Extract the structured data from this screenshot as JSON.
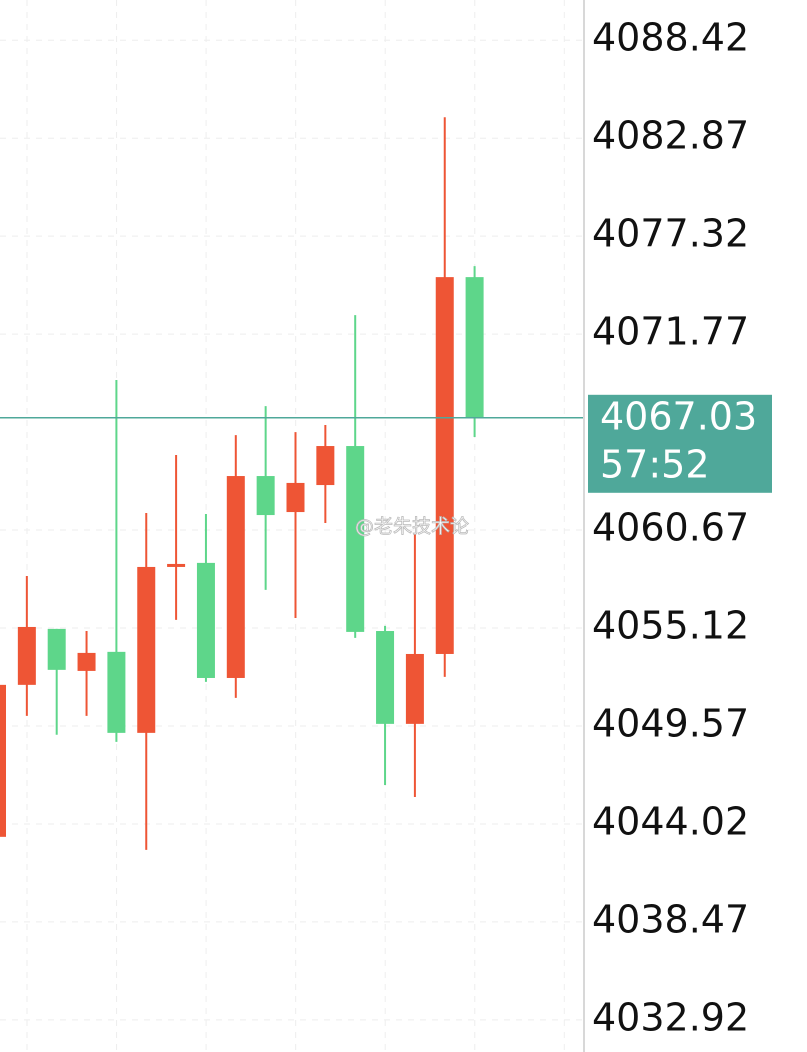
{
  "chart_data": {
    "type": "candlestick",
    "ylim": [
      4031.1,
      4090.7
    ],
    "yticks": [
      4088.42,
      4082.87,
      4077.32,
      4071.77,
      4060.67,
      4055.12,
      4049.57,
      4044.02,
      4038.47,
      4032.92
    ],
    "grid": true,
    "up_color": "#ee5535",
    "down_color": "#5ed68a",
    "candles": [
      {
        "open": 4043.29,
        "high": 4051.9,
        "low": 4043.29,
        "close": 4051.9
      },
      {
        "open": 4051.9,
        "high": 4058.07,
        "low": 4050.14,
        "close": 4055.18
      },
      {
        "open": 4055.07,
        "high": 4055.07,
        "low": 4049.07,
        "close": 4052.75
      },
      {
        "open": 4052.69,
        "high": 4054.95,
        "low": 4050.14,
        "close": 4053.71
      },
      {
        "open": 4053.77,
        "high": 4069.17,
        "low": 4048.67,
        "close": 4049.18
      },
      {
        "open": 4049.18,
        "high": 4061.64,
        "low": 4042.55,
        "close": 4058.58
      },
      {
        "open": 4058.58,
        "high": 4064.92,
        "low": 4055.58,
        "close": 4058.75
      },
      {
        "open": 4058.81,
        "high": 4061.58,
        "low": 4052.07,
        "close": 4052.29
      },
      {
        "open": 4052.29,
        "high": 4066.05,
        "low": 4051.16,
        "close": 4063.73
      },
      {
        "open": 4063.73,
        "high": 4067.69,
        "low": 4057.28,
        "close": 4061.52
      },
      {
        "open": 4061.69,
        "high": 4066.22,
        "low": 4055.69,
        "close": 4063.34
      },
      {
        "open": 4063.22,
        "high": 4066.62,
        "low": 4061.07,
        "close": 4065.43
      },
      {
        "open": 4065.43,
        "high": 4072.85,
        "low": 4054.56,
        "close": 4054.9
      },
      {
        "open": 4054.95,
        "high": 4055.24,
        "low": 4046.23,
        "close": 4049.69
      },
      {
        "open": 4049.69,
        "high": 4060.5,
        "low": 4045.55,
        "close": 4053.65
      },
      {
        "open": 4053.65,
        "high": 4084.06,
        "low": 4052.35,
        "close": 4075.0
      },
      {
        "open": 4075.0,
        "high": 4075.62,
        "low": 4065.94,
        "close": 4067.03
      }
    ],
    "last_price": 4067.03,
    "last_price_color": "#4fa89a",
    "countdown": "57:52",
    "watermark": "@老朱技术论"
  }
}
